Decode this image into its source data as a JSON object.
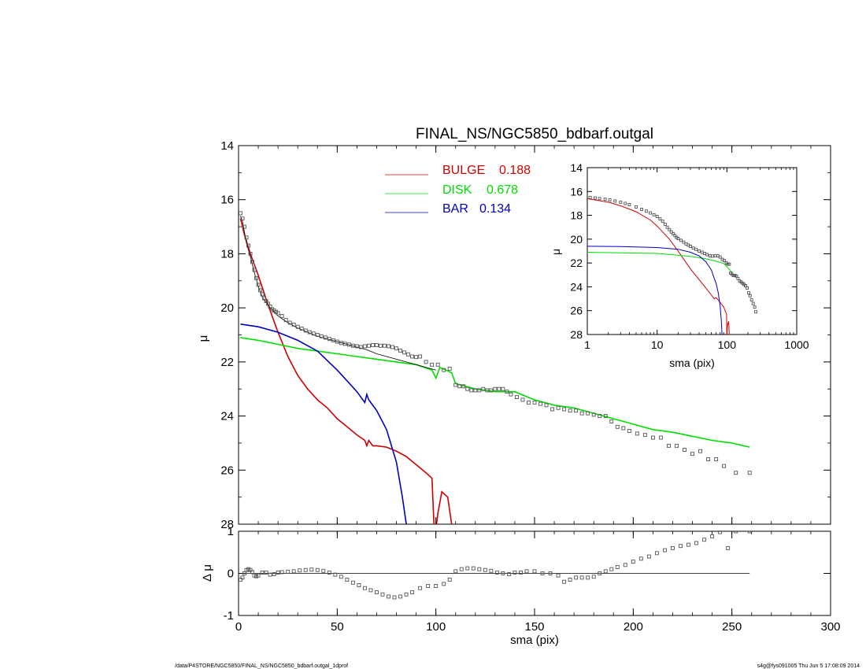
{
  "footer": {
    "left": "/data/P4STORE/NGC5850/FINAL_NS/NGC5850_bdbarf.outgal_1dprof",
    "right": "s4g@fys091005  Thu Jun  5 17:08:09 2014"
  },
  "colors": {
    "bulge": "#d00000",
    "disk": "#00e000",
    "bar": "#0000c0",
    "total": "#000000",
    "data": "#555555"
  },
  "chart_data": [
    {
      "type": "line",
      "panel": "main",
      "title": "FINAL_NS/NGC5850_bdbarf.outgal",
      "ylabel": "μ",
      "xlabel": "",
      "xlim": [
        0,
        300
      ],
      "ylim": [
        28,
        14
      ],
      "xticks": [
        0,
        50,
        100,
        150,
        200,
        250,
        300
      ],
      "yticks": [
        14,
        16,
        18,
        20,
        22,
        24,
        26,
        28
      ],
      "legend": [
        {
          "label": "BULGE",
          "value": "0.188",
          "color": "#d00000"
        },
        {
          "label": "DISK",
          "value": "0.678",
          "color": "#00e000"
        },
        {
          "label": "BAR",
          "value": "0.134",
          "color": "#0000c0"
        }
      ],
      "series": [
        {
          "name": "BULGE",
          "color": "#d00000",
          "x": [
            1,
            3,
            6,
            10,
            15,
            20,
            25,
            30,
            35,
            40,
            45,
            50,
            55,
            60,
            64,
            65,
            66,
            68,
            70,
            75,
            80,
            85,
            90,
            95,
            98,
            99,
            100,
            101,
            103,
            106,
            108
          ],
          "y": [
            16.7,
            17.3,
            18.0,
            18.8,
            19.9,
            20.9,
            21.8,
            22.5,
            23.0,
            23.4,
            23.7,
            24.1,
            24.4,
            24.7,
            24.9,
            25.1,
            24.9,
            25.1,
            25.1,
            25.15,
            25.3,
            25.5,
            25.8,
            26.1,
            26.3,
            28.0,
            28.2,
            27.6,
            26.8,
            27.0,
            28.0
          ]
        },
        {
          "name": "DISK",
          "color": "#00e000",
          "x": [
            1,
            10,
            20,
            30,
            40,
            50,
            60,
            70,
            80,
            90,
            98,
            100,
            102,
            105,
            108,
            110,
            120,
            130,
            140,
            150,
            160,
            170,
            180,
            190,
            200,
            210,
            220,
            230,
            240,
            250,
            259
          ],
          "y": [
            21.1,
            21.2,
            21.35,
            21.5,
            21.6,
            21.7,
            21.8,
            21.9,
            22.0,
            22.1,
            22.3,
            22.6,
            22.2,
            22.3,
            22.4,
            22.8,
            23.0,
            23.1,
            23.1,
            23.4,
            23.6,
            23.7,
            23.9,
            24.1,
            24.3,
            24.5,
            24.6,
            24.75,
            24.9,
            25.0,
            25.15
          ]
        },
        {
          "name": "BAR",
          "color": "#0000c0",
          "x": [
            1,
            10,
            20,
            30,
            40,
            50,
            55,
            60,
            64,
            65,
            66,
            67,
            70,
            75,
            80,
            83,
            85
          ],
          "y": [
            20.6,
            20.7,
            20.9,
            21.2,
            21.6,
            22.3,
            22.7,
            23.1,
            23.5,
            23.2,
            23.4,
            23.5,
            23.8,
            24.5,
            25.7,
            27.0,
            28.0
          ]
        },
        {
          "name": "",
          "color": "#000000",
          "x": [
            1,
            2,
            4,
            6,
            8,
            10,
            12,
            14,
            16,
            18,
            20,
            25,
            30,
            35,
            40,
            45,
            50,
            55,
            60,
            65,
            70,
            75,
            80,
            85,
            90,
            95,
            100
          ],
          "y": [
            16.6,
            16.8,
            17.6,
            18.1,
            18.7,
            19.2,
            19.6,
            19.8,
            20.0,
            20.15,
            20.3,
            20.55,
            20.75,
            20.9,
            21.05,
            21.15,
            21.25,
            21.35,
            21.45,
            21.55,
            21.7,
            21.8,
            21.9,
            22.0,
            22.1,
            22.2,
            22.3
          ]
        },
        {
          "name": "",
          "color": "#555555",
          "marker": "square",
          "x": [
            1,
            2,
            3,
            4,
            5,
            6,
            7,
            8,
            9,
            10,
            11,
            12,
            13,
            14,
            15,
            16,
            17,
            18,
            19,
            20,
            22,
            24,
            26,
            28,
            30,
            32,
            34,
            36,
            38,
            40,
            42,
            44,
            46,
            48,
            50,
            52,
            54,
            56,
            58,
            60,
            62,
            64,
            66,
            68,
            70,
            72,
            74,
            76,
            78,
            80,
            82,
            84,
            86,
            88,
            90,
            92,
            95,
            98,
            101,
            104,
            107,
            110,
            112,
            114,
            116,
            118,
            120,
            122,
            124,
            126,
            128,
            130,
            132,
            134,
            136,
            138,
            141,
            144,
            147,
            150,
            153,
            156,
            159,
            162,
            165,
            168,
            171,
            174,
            177,
            180,
            183,
            186,
            189,
            192,
            195,
            198,
            202,
            206,
            210,
            214,
            218,
            222,
            226,
            230,
            234,
            238,
            242,
            246,
            252,
            259
          ],
          "y": [
            16.5,
            16.7,
            17.0,
            17.4,
            17.7,
            18.0,
            18.3,
            18.6,
            18.9,
            19.15,
            19.35,
            19.5,
            19.65,
            19.75,
            19.85,
            19.95,
            20.05,
            20.1,
            20.15,
            20.2,
            20.3,
            20.45,
            20.55,
            20.62,
            20.7,
            20.77,
            20.84,
            20.9,
            20.95,
            21.0,
            21.05,
            21.1,
            21.15,
            21.2,
            21.25,
            21.3,
            21.33,
            21.36,
            21.4,
            21.42,
            21.45,
            21.42,
            21.4,
            21.38,
            21.38,
            21.4,
            21.4,
            21.42,
            21.45,
            21.5,
            21.58,
            21.65,
            21.72,
            21.8,
            21.82,
            21.8,
            22.0,
            22.1,
            22.1,
            22.3,
            22.25,
            22.85,
            22.9,
            22.9,
            23.0,
            23.05,
            23.05,
            23.05,
            23.0,
            23.05,
            23.05,
            23.0,
            23.0,
            23.0,
            23.1,
            23.2,
            23.3,
            23.4,
            23.5,
            23.5,
            23.55,
            23.6,
            23.75,
            23.7,
            23.75,
            23.8,
            23.8,
            23.9,
            23.9,
            23.95,
            24.0,
            24.0,
            24.2,
            24.4,
            24.45,
            24.55,
            24.65,
            24.7,
            24.8,
            24.8,
            25.1,
            25.1,
            25.25,
            25.4,
            25.3,
            25.6,
            25.6,
            25.85,
            26.1,
            26.1
          ]
        }
      ]
    },
    {
      "type": "line",
      "panel": "residual",
      "ylabel": "Δ μ",
      "xlabel": "sma (pix)",
      "xlim": [
        0,
        300
      ],
      "ylim": [
        -1,
        1
      ],
      "xticks": [
        0,
        50,
        100,
        150,
        200,
        250,
        300
      ],
      "yticks": [
        1,
        0,
        -1
      ],
      "series": [
        {
          "name": "",
          "color": "#000000",
          "x": [
            1,
            259
          ],
          "y": [
            0,
            0
          ]
        },
        {
          "name": "",
          "color": "#555555",
          "marker": "square",
          "x": [
            1,
            2,
            3,
            4,
            5,
            6,
            7,
            8,
            9,
            10,
            12,
            14,
            16,
            18,
            20,
            22,
            25,
            28,
            31,
            34,
            37,
            40,
            43,
            46,
            49,
            52,
            55,
            58,
            61,
            64,
            67,
            70,
            73,
            76,
            79,
            82,
            85,
            88,
            92,
            96,
            100,
            104,
            107,
            110,
            113,
            116,
            119,
            122,
            125,
            128,
            131,
            134,
            137,
            140,
            143,
            146,
            150,
            154,
            158,
            162,
            165,
            168,
            171,
            174,
            177,
            180,
            183,
            186,
            189,
            192,
            196,
            200,
            204,
            208,
            212,
            216,
            220,
            224,
            228,
            232,
            236,
            240,
            244,
            248,
            252,
            259
          ],
          "y": [
            -0.15,
            -0.1,
            0.0,
            0.08,
            0.1,
            0.08,
            0.03,
            -0.05,
            -0.07,
            -0.05,
            0.02,
            0.02,
            -0.03,
            -0.02,
            0.02,
            0.03,
            0.04,
            0.05,
            0.07,
            0.08,
            0.09,
            0.08,
            0.06,
            0.02,
            -0.03,
            -0.08,
            -0.15,
            -0.22,
            -0.28,
            -0.35,
            -0.4,
            -0.45,
            -0.5,
            -0.55,
            -0.57,
            -0.55,
            -0.5,
            -0.45,
            -0.35,
            -0.3,
            -0.3,
            -0.25,
            -0.15,
            0.05,
            0.1,
            0.12,
            0.12,
            0.1,
            0.08,
            0.06,
            0.02,
            0.0,
            -0.02,
            0.02,
            0.02,
            0.05,
            0.05,
            0.0,
            0.0,
            -0.05,
            -0.2,
            -0.15,
            -0.1,
            -0.1,
            -0.1,
            -0.08,
            0.0,
            0.05,
            0.1,
            0.15,
            0.2,
            0.28,
            0.35,
            0.4,
            0.48,
            0.55,
            0.6,
            0.65,
            0.68,
            0.72,
            0.8,
            0.88,
            0.98,
            0.6,
            1.0,
            1.0
          ]
        }
      ]
    },
    {
      "type": "line",
      "panel": "inset",
      "ylabel": "μ",
      "xlabel": "sma (pix)",
      "xscale": "log",
      "xlim": [
        1,
        1000
      ],
      "ylim": [
        28,
        14
      ],
      "xticks": [
        1,
        10,
        100,
        1000
      ],
      "yticks": [
        14,
        16,
        18,
        20,
        22,
        24,
        26,
        28
      ],
      "series": [
        {
          "name": "",
          "color": "#d00000",
          "x": [
            1,
            2,
            3,
            5,
            8,
            10,
            15,
            20,
            30,
            40,
            50,
            60,
            66,
            70,
            80,
            90,
            99,
            100,
            102,
            106,
            108
          ],
          "y": [
            16.6,
            16.9,
            17.2,
            17.7,
            18.4,
            18.9,
            20.0,
            21.0,
            22.5,
            23.4,
            24.1,
            24.7,
            25.0,
            24.9,
            25.3,
            25.7,
            26.3,
            28.0,
            27.2,
            26.9,
            28.0
          ]
        },
        {
          "name": "",
          "color": "#00e000",
          "x": [
            1,
            3,
            10,
            20,
            30,
            50,
            70,
            90,
            100,
            110,
            120
          ],
          "y": [
            21.1,
            21.15,
            21.2,
            21.35,
            21.45,
            21.65,
            21.85,
            22.05,
            22.3,
            22.6,
            22.8
          ]
        },
        {
          "name": "",
          "color": "#0000c0",
          "x": [
            1,
            3,
            10,
            20,
            30,
            40,
            50,
            60,
            65,
            70,
            75,
            80,
            83,
            85
          ],
          "y": [
            20.6,
            20.62,
            20.7,
            20.85,
            21.1,
            21.4,
            21.9,
            22.6,
            23.2,
            23.7,
            24.5,
            25.6,
            26.8,
            28.0
          ]
        },
        {
          "name": "",
          "color": "#555555",
          "marker": "square",
          "x": [
            1.1,
            1.3,
            1.5,
            1.8,
            2.1,
            2.5,
            3,
            3.5,
            4,
            5,
            6,
            7,
            8,
            9,
            10,
            11,
            12,
            13,
            14,
            15,
            16,
            17,
            18,
            19,
            20,
            22,
            24,
            26,
            28,
            30,
            33,
            36,
            40,
            44,
            48,
            52,
            57,
            62,
            68,
            74,
            80,
            86,
            92,
            98,
            103,
            108,
            113,
            118,
            124,
            130,
            137,
            144,
            152,
            160,
            168,
            176,
            185,
            195,
            205,
            215,
            226,
            238,
            250,
            259
          ],
          "y": [
            16.5,
            16.55,
            16.6,
            16.65,
            16.7,
            16.8,
            16.9,
            17.0,
            17.1,
            17.3,
            17.5,
            17.65,
            17.8,
            17.95,
            18.1,
            18.3,
            18.5,
            18.75,
            19.0,
            19.2,
            19.4,
            19.55,
            19.7,
            19.85,
            19.95,
            20.1,
            20.25,
            20.4,
            20.5,
            20.6,
            20.75,
            20.85,
            21.0,
            21.1,
            21.2,
            21.3,
            21.4,
            21.42,
            21.4,
            21.4,
            21.5,
            21.7,
            21.8,
            22.0,
            22.1,
            22.1,
            22.85,
            22.95,
            23.05,
            23.05,
            23.1,
            23.3,
            23.5,
            23.6,
            23.7,
            23.8,
            23.9,
            24.1,
            24.5,
            24.75,
            25.1,
            25.4,
            25.7,
            26.1
          ]
        }
      ]
    }
  ]
}
